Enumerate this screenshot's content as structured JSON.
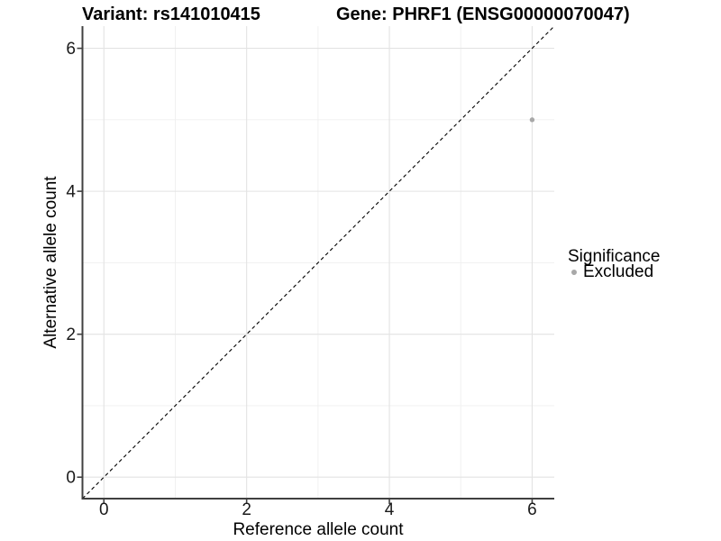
{
  "header": {
    "title_left": "Variant: rs141010415",
    "title_right": "Gene: PHRF1 (ENSG00000070047)"
  },
  "legend": {
    "title": "Significance",
    "items": [
      {
        "label": "Excluded",
        "marker": "circle-icon",
        "color": "#a8a8a8"
      }
    ]
  },
  "chart_data": {
    "type": "scatter",
    "title": "Variant: rs141010415   |   Gene: PHRF1 (ENSG00000070047)",
    "xlabel": "Reference allele count",
    "ylabel": "Alternative allele count",
    "xlim": [
      -0.3,
      6.31
    ],
    "ylim": [
      -0.3,
      6.31
    ],
    "x_major_ticks": [
      0,
      2,
      4,
      6
    ],
    "y_major_ticks": [
      0,
      2,
      4,
      6
    ],
    "x_minor_gridlines": [
      1,
      3,
      5
    ],
    "y_minor_gridlines": [
      1,
      3,
      5
    ],
    "grid": "major+minor",
    "legend_position": "right",
    "series": [
      {
        "name": "Excluded",
        "color": "#a8a8a8",
        "points": [
          {
            "x": 6,
            "y": 5
          }
        ]
      }
    ],
    "reference_line": {
      "kind": "identity",
      "style": "dashed",
      "color": "#000000"
    }
  },
  "colors": {
    "background": "#ffffff",
    "axis_line": "#404040",
    "grid_major": "#e3e3e3",
    "grid_minor": "#efefef",
    "tick_text": "#1a1a1a",
    "point_excluded": "#a8a8a8"
  }
}
